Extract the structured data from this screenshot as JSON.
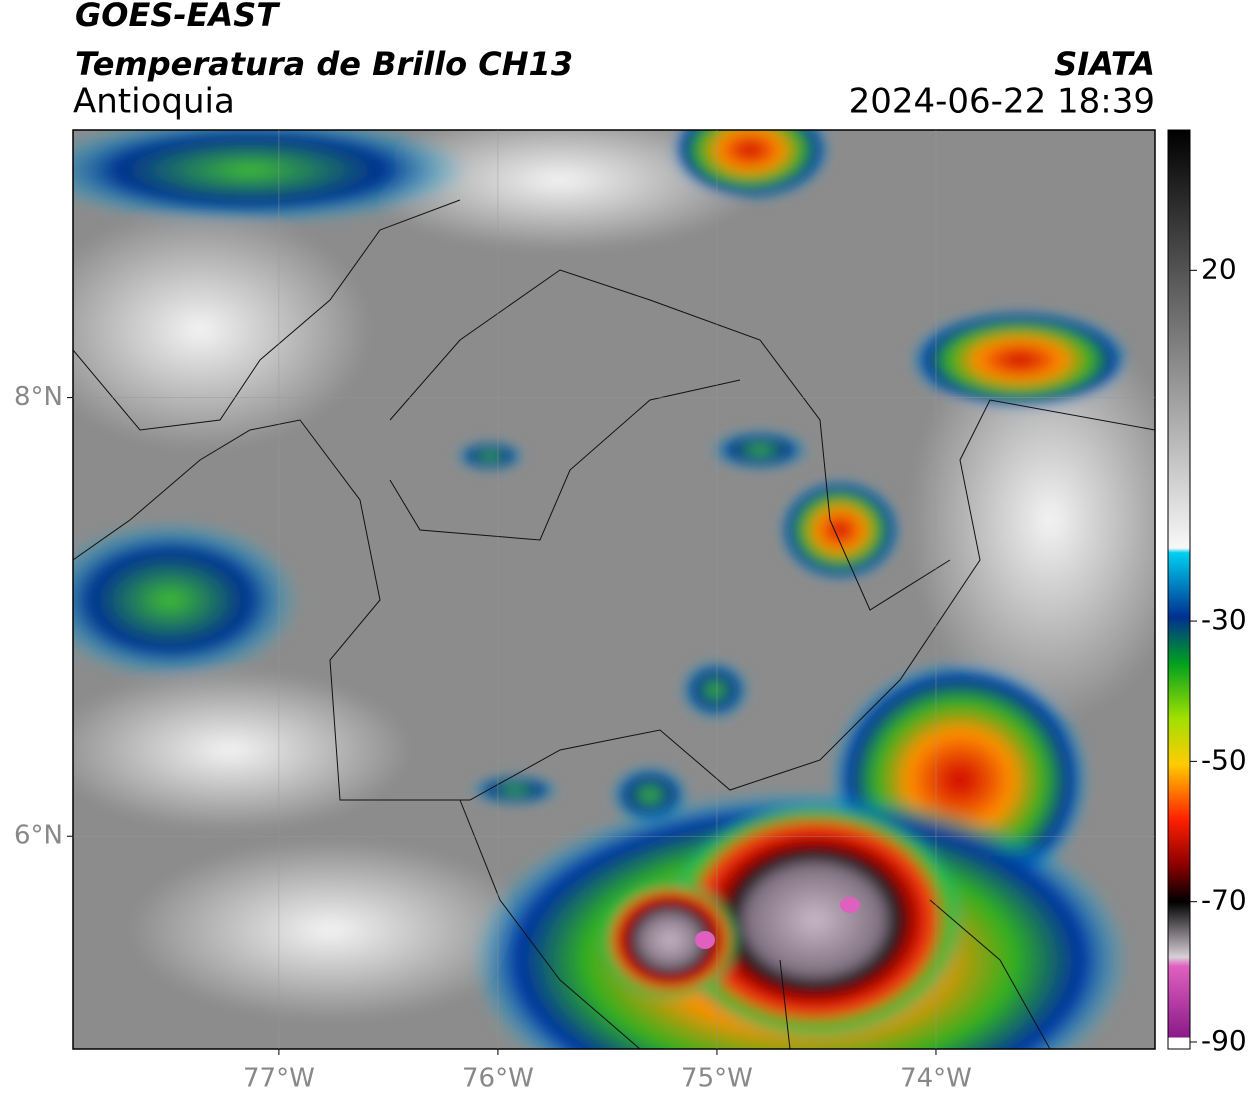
{
  "header": {
    "title": "GOES-EAST",
    "subtitle": "Temperatura de Brillo CH13",
    "region": "Antioquia",
    "source": "SIATA",
    "timestamp": "2024-06-22 18:39"
  },
  "map": {
    "xlim": [
      -77.94,
      -73.0
    ],
    "ylim": [
      5.03,
      9.22
    ],
    "xticks": [
      {
        "value": -77,
        "label": "77°W"
      },
      {
        "value": -76,
        "label": "76°W"
      },
      {
        "value": -75,
        "label": "75°W"
      },
      {
        "value": -74,
        "label": "74°W"
      }
    ],
    "yticks": [
      {
        "value": 8,
        "label": "8°N"
      },
      {
        "value": 6,
        "label": "6°N"
      }
    ]
  },
  "colorbar": {
    "lim": [
      -91,
      40
    ],
    "ticks": [
      20,
      -30,
      -50,
      -70,
      -90
    ]
  }
}
